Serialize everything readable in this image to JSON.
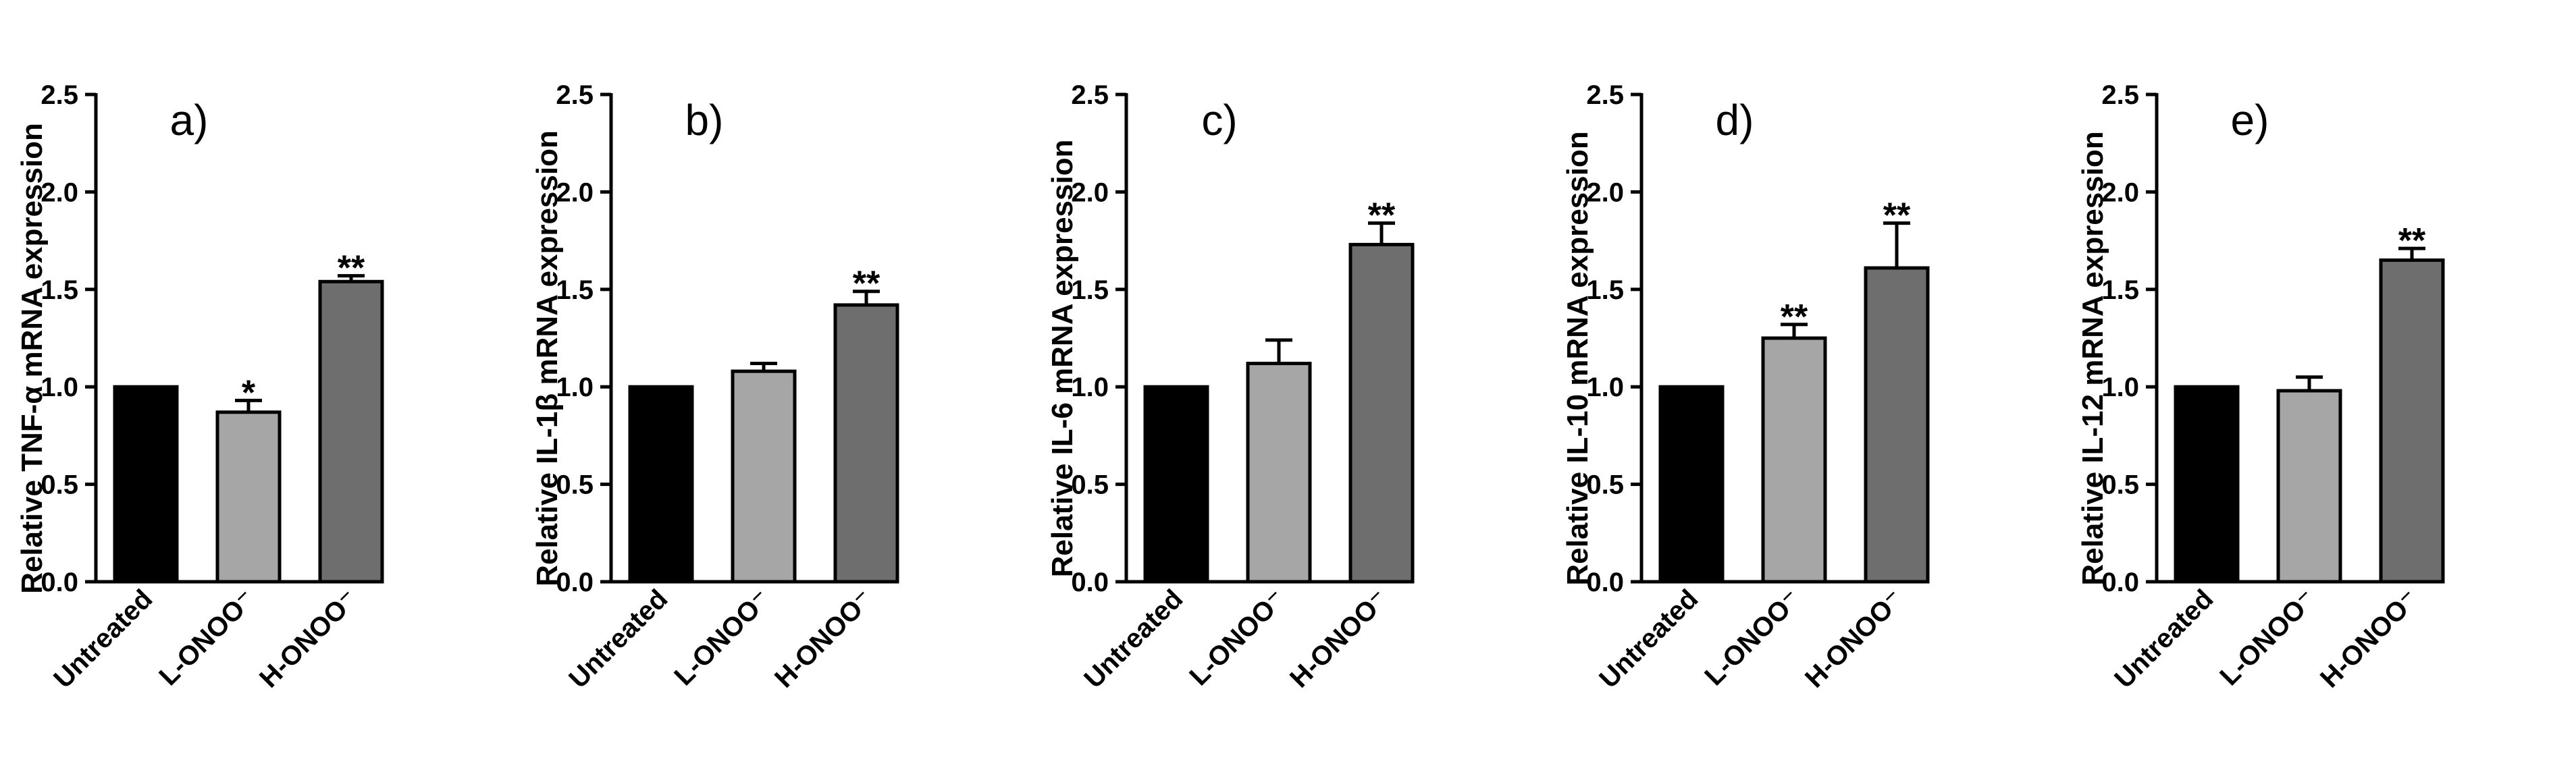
{
  "chart_data": [
    {
      "type": "bar",
      "panel_label": "a)",
      "ylabel": "Relative TNF-α mRNA expression",
      "categories": [
        "Untreated",
        "L-ONOO⁻",
        "H-ONOO⁻"
      ],
      "values": [
        1.0,
        0.87,
        1.54
      ],
      "errors": [
        0,
        0.06,
        0.03
      ],
      "significance": [
        "",
        "*",
        "**"
      ],
      "colors": [
        "#000000",
        "#a6a6a6",
        "#6e6e6e"
      ],
      "ylim": [
        0,
        2.5
      ],
      "yticks": [
        "0.0",
        "0.5",
        "1.0",
        "1.5",
        "2.0",
        "2.5"
      ]
    },
    {
      "type": "bar",
      "panel_label": "b)",
      "ylabel": "Relative IL-1β mRNA expression",
      "categories": [
        "Untreated",
        "L-ONOO⁻",
        "H-ONOO⁻"
      ],
      "values": [
        1.0,
        1.08,
        1.42
      ],
      "errors": [
        0,
        0.04,
        0.07
      ],
      "significance": [
        "",
        "",
        "**"
      ],
      "colors": [
        "#000000",
        "#a6a6a6",
        "#6e6e6e"
      ],
      "ylim": [
        0,
        2.5
      ],
      "yticks": [
        "0.0",
        "0.5",
        "1.0",
        "1.5",
        "2.0",
        "2.5"
      ]
    },
    {
      "type": "bar",
      "panel_label": "c)",
      "ylabel": "Relative IL-6 mRNA expression",
      "categories": [
        "Untreated",
        "L-ONOO⁻",
        "H-ONOO⁻"
      ],
      "values": [
        1.0,
        1.12,
        1.73
      ],
      "errors": [
        0,
        0.12,
        0.11
      ],
      "significance": [
        "",
        "",
        "**"
      ],
      "colors": [
        "#000000",
        "#a6a6a6",
        "#6e6e6e"
      ],
      "ylim": [
        0,
        2.5
      ],
      "yticks": [
        "0.0",
        "0.5",
        "1.0",
        "1.5",
        "2.0",
        "2.5"
      ]
    },
    {
      "type": "bar",
      "panel_label": "d)",
      "ylabel": "Relative IL-10 mRNA expression",
      "categories": [
        "Untreated",
        "L-ONOO⁻",
        "H-ONOO⁻"
      ],
      "values": [
        1.0,
        1.25,
        1.61
      ],
      "errors": [
        0,
        0.07,
        0.23
      ],
      "significance": [
        "",
        "**",
        "**"
      ],
      "colors": [
        "#000000",
        "#a6a6a6",
        "#6e6e6e"
      ],
      "ylim": [
        0,
        2.5
      ],
      "yticks": [
        "0.0",
        "0.5",
        "1.0",
        "1.5",
        "2.0",
        "2.5"
      ]
    },
    {
      "type": "bar",
      "panel_label": "e)",
      "ylabel": "Relative IL-12 mRNA expression",
      "categories": [
        "Untreated",
        "L-ONOO⁻",
        "H-ONOO⁻"
      ],
      "values": [
        1.0,
        0.98,
        1.65
      ],
      "errors": [
        0,
        0.07,
        0.06
      ],
      "significance": [
        "",
        "",
        "**"
      ],
      "colors": [
        "#000000",
        "#a6a6a6",
        "#6e6e6e"
      ],
      "ylim": [
        0,
        2.5
      ],
      "yticks": [
        "0.0",
        "0.5",
        "1.0",
        "1.5",
        "2.0",
        "2.5"
      ]
    }
  ]
}
